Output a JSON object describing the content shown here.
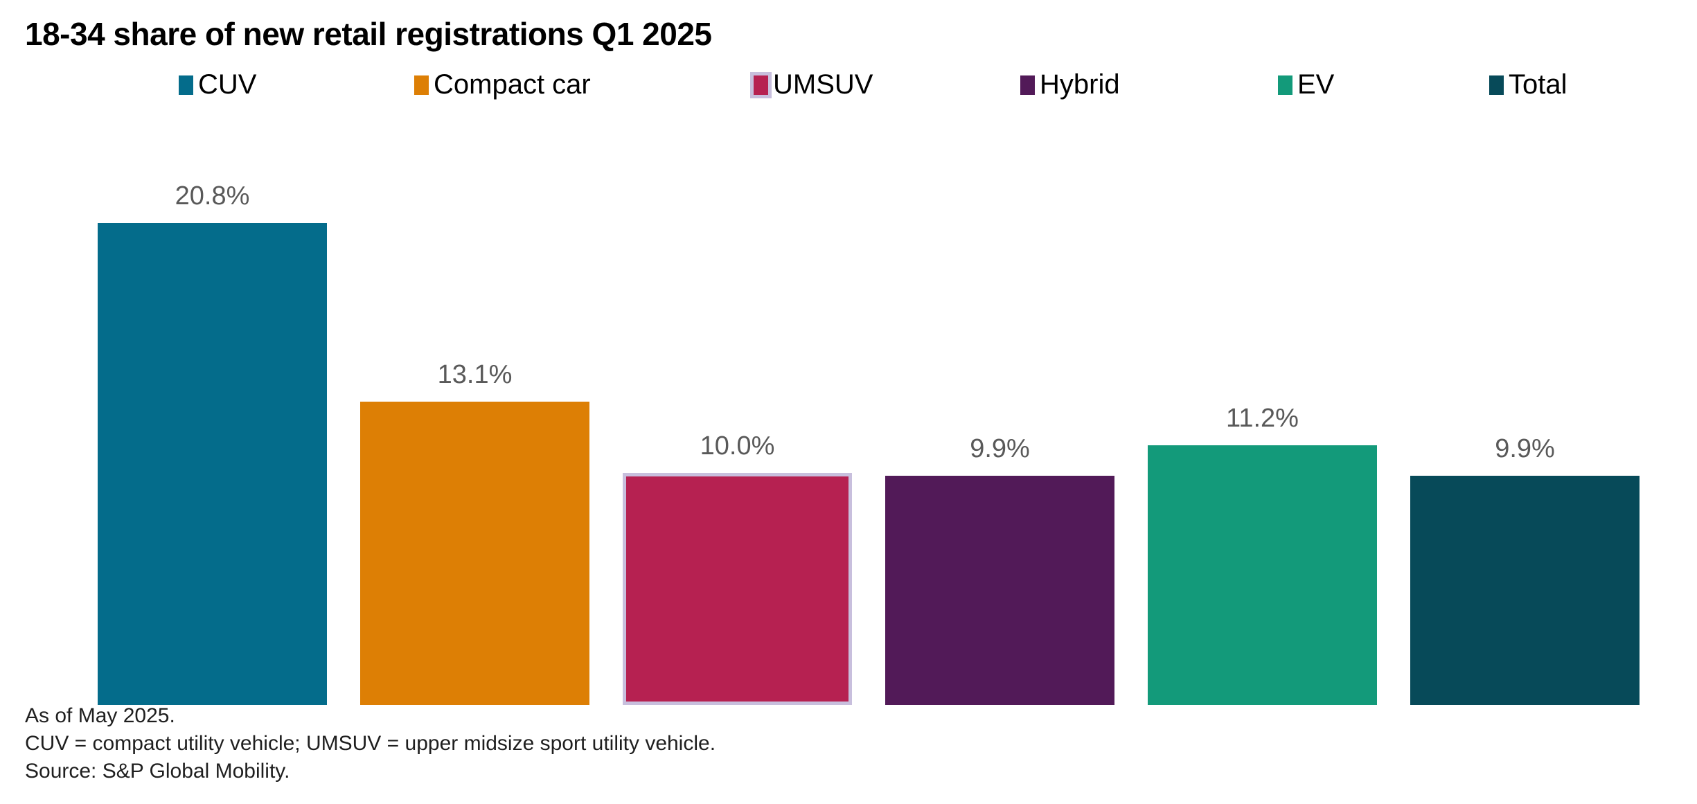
{
  "page": {
    "title": "18-34 share of new retail registrations Q1 2025"
  },
  "legend": {
    "items": [
      {
        "label": "CUV",
        "color": "#046c8b"
      },
      {
        "label": "Compact car",
        "color": "#dd7f05"
      },
      {
        "label": "UMSUV",
        "color": "#b62151",
        "border_color": "#c8bfdd"
      },
      {
        "label": "Hybrid",
        "color": "#521a58"
      },
      {
        "label": "EV",
        "color": "#139a7a"
      },
      {
        "label": "Total",
        "color": "#074a59"
      }
    ]
  },
  "chart_data": {
    "type": "bar",
    "title": "18-34 share of new retail registrations Q1 2025",
    "categories": [
      "CUV",
      "Compact car",
      "UMSUV",
      "Hybrid",
      "EV",
      "Total"
    ],
    "values": [
      20.8,
      13.1,
      10.0,
      9.9,
      11.2,
      9.9
    ],
    "value_labels": [
      "20.8%",
      "13.1%",
      "10.0%",
      "9.9%",
      "11.2%",
      "9.9%"
    ],
    "series_colors": [
      "#046c8b",
      "#dd7f05",
      "#b62151",
      "#521a58",
      "#139a7a",
      "#074a59"
    ],
    "highlighted_category": "UMSUV",
    "highlight_border_color": "#c8bfdd",
    "value_label_color": "#595959",
    "xlabel": "",
    "ylabel": "",
    "ylim": [
      0,
      22
    ],
    "grid": false,
    "axes_visible": false,
    "x_tick_labels_visible": false,
    "legend_position": "top"
  },
  "footnotes": {
    "line1": "As of May 2025.",
    "line2": "CUV = compact utility vehicle; UMSUV = upper midsize sport utility vehicle.",
    "line3": "Source: S&P Global Mobility."
  }
}
